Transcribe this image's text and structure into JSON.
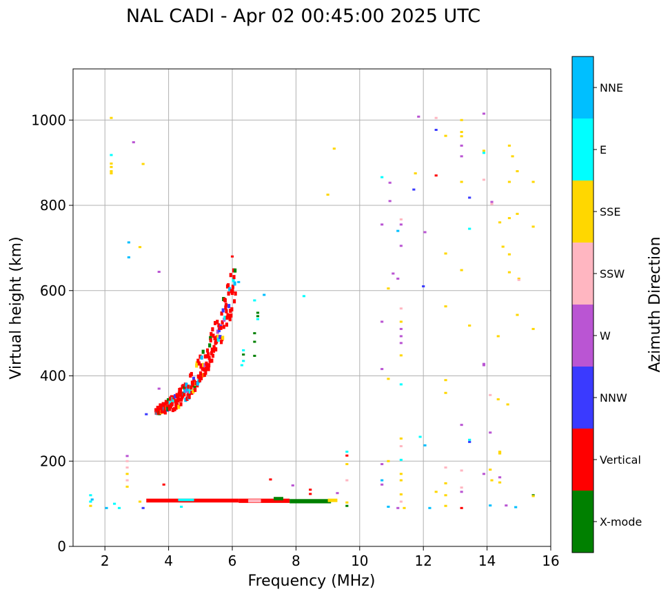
{
  "chart_data": {
    "type": "scatter",
    "title": "NAL CADI - Apr 02 00:45:00 2025 UTC",
    "xlabel": "Frequency (MHz)",
    "ylabel": "Virtual height (km)",
    "xlim": [
      1.0,
      16.0
    ],
    "ylim": [
      0,
      1120
    ],
    "xticks": [
      2,
      4,
      6,
      8,
      10,
      12,
      14,
      16
    ],
    "yticks": [
      0,
      200,
      400,
      600,
      800,
      1000
    ],
    "grid": true,
    "colorbar": {
      "label": "Azimuth Direction",
      "categories": [
        {
          "name": "X-mode",
          "color": "#008000"
        },
        {
          "name": "Vertical",
          "color": "#ff0000"
        },
        {
          "name": "NNW",
          "color": "#3a3aff"
        },
        {
          "name": "W",
          "color": "#ba55d3"
        },
        {
          "name": "SSW",
          "color": "#ffb6c1"
        },
        {
          "name": "SSE",
          "color": "#ffd700"
        },
        {
          "name": "E",
          "color": "#00ffff"
        },
        {
          "name": "NNE",
          "color": "#00bfff"
        }
      ]
    },
    "points": [
      {
        "f": 1.55,
        "h": 120,
        "c": "E"
      },
      {
        "f": 1.55,
        "h": 105,
        "c": "E"
      },
      {
        "f": 1.55,
        "h": 95,
        "c": "SSE"
      },
      {
        "f": 1.6,
        "h": 110,
        "c": "NNE"
      },
      {
        "f": 2.05,
        "h": 90,
        "c": "NNE"
      },
      {
        "f": 2.3,
        "h": 100,
        "c": "E"
      },
      {
        "f": 2.45,
        "h": 90,
        "c": "E"
      },
      {
        "f": 2.2,
        "h": 1005,
        "c": "SSE"
      },
      {
        "f": 2.2,
        "h": 918,
        "c": "E"
      },
      {
        "f": 2.2,
        "h": 898,
        "c": "SSE"
      },
      {
        "f": 2.2,
        "h": 890,
        "c": "SSE"
      },
      {
        "f": 2.2,
        "h": 880,
        "c": "SSE"
      },
      {
        "f": 2.2,
        "h": 875,
        "c": "SSE"
      },
      {
        "f": 2.9,
        "h": 948,
        "c": "W"
      },
      {
        "f": 3.2,
        "h": 897,
        "c": "SSE"
      },
      {
        "f": 2.75,
        "h": 713,
        "c": "NNE"
      },
      {
        "f": 3.1,
        "h": 702,
        "c": "SSE"
      },
      {
        "f": 2.75,
        "h": 678,
        "c": "NNE"
      },
      {
        "f": 2.7,
        "h": 212,
        "c": "W"
      },
      {
        "f": 2.7,
        "h": 200,
        "c": "SSW"
      },
      {
        "f": 2.7,
        "h": 185,
        "c": "SSW"
      },
      {
        "f": 2.7,
        "h": 170,
        "c": "SSE"
      },
      {
        "f": 2.7,
        "h": 155,
        "c": "SSW"
      },
      {
        "f": 2.7,
        "h": 140,
        "c": "SSE"
      },
      {
        "f": 3.7,
        "h": 644,
        "c": "W"
      },
      {
        "f": 3.7,
        "h": 370,
        "c": "W"
      },
      {
        "f": 3.3,
        "h": 310,
        "c": "NNW"
      },
      {
        "f": 3.85,
        "h": 145,
        "c": "Vertical"
      },
      {
        "f": 3.2,
        "h": 90,
        "c": "NNW"
      },
      {
        "f": 3.1,
        "h": 105,
        "c": "SSE"
      },
      {
        "f": 4.4,
        "h": 93,
        "c": "E"
      },
      {
        "f": 7.2,
        "h": 157,
        "c": "Vertical"
      },
      {
        "f": 7.9,
        "h": 143,
        "c": "W"
      },
      {
        "f": 8.45,
        "h": 133,
        "c": "Vertical"
      },
      {
        "f": 8.45,
        "h": 123,
        "c": "Vertical"
      },
      {
        "f": 6.8,
        "h": 548,
        "c": "X-mode"
      },
      {
        "f": 6.8,
        "h": 540,
        "c": "X-mode"
      },
      {
        "f": 6.8,
        "h": 533,
        "c": "E"
      },
      {
        "f": 6.7,
        "h": 500,
        "c": "X-mode"
      },
      {
        "f": 6.7,
        "h": 480,
        "c": "X-mode"
      },
      {
        "f": 6.7,
        "h": 447,
        "c": "X-mode"
      },
      {
        "f": 6.35,
        "h": 460,
        "c": "E"
      },
      {
        "f": 6.35,
        "h": 450,
        "c": "X-mode"
      },
      {
        "f": 6.35,
        "h": 435,
        "c": "E"
      },
      {
        "f": 6.3,
        "h": 425,
        "c": "E"
      },
      {
        "f": 6.2,
        "h": 620,
        "c": "NNE"
      },
      {
        "f": 6.0,
        "h": 680,
        "c": "Vertical"
      },
      {
        "f": 6.7,
        "h": 577,
        "c": "E"
      },
      {
        "f": 7.0,
        "h": 590,
        "c": "NNE"
      },
      {
        "f": 9.2,
        "h": 933,
        "c": "SSE"
      },
      {
        "f": 9.0,
        "h": 825,
        "c": "SSE"
      },
      {
        "f": 8.25,
        "h": 587,
        "c": "E"
      },
      {
        "f": 9.6,
        "h": 222,
        "c": "E"
      },
      {
        "f": 9.6,
        "h": 213,
        "c": "Vertical"
      },
      {
        "f": 9.6,
        "h": 193,
        "c": "SSE"
      },
      {
        "f": 9.6,
        "h": 155,
        "c": "SSW"
      },
      {
        "f": 9.3,
        "h": 125,
        "c": "W"
      },
      {
        "f": 9.6,
        "h": 103,
        "c": "SSE"
      },
      {
        "f": 9.6,
        "h": 95,
        "c": "X-mode"
      },
      {
        "f": 10.7,
        "h": 866,
        "c": "E"
      },
      {
        "f": 10.95,
        "h": 853,
        "c": "W"
      },
      {
        "f": 10.95,
        "h": 810,
        "c": "W"
      },
      {
        "f": 10.7,
        "h": 755,
        "c": "W"
      },
      {
        "f": 11.2,
        "h": 740,
        "c": "NNE"
      },
      {
        "f": 11.3,
        "h": 767,
        "c": "SSW"
      },
      {
        "f": 11.3,
        "h": 755,
        "c": "W"
      },
      {
        "f": 11.3,
        "h": 705,
        "c": "W"
      },
      {
        "f": 11.05,
        "h": 640,
        "c": "W"
      },
      {
        "f": 11.2,
        "h": 628,
        "c": "W"
      },
      {
        "f": 10.9,
        "h": 605,
        "c": "SSE"
      },
      {
        "f": 10.7,
        "h": 527,
        "c": "W"
      },
      {
        "f": 11.3,
        "h": 558,
        "c": "SSW"
      },
      {
        "f": 11.3,
        "h": 527,
        "c": "SSE"
      },
      {
        "f": 11.3,
        "h": 510,
        "c": "W"
      },
      {
        "f": 11.3,
        "h": 493,
        "c": "W"
      },
      {
        "f": 11.3,
        "h": 477,
        "c": "W"
      },
      {
        "f": 11.3,
        "h": 448,
        "c": "SSE"
      },
      {
        "f": 10.7,
        "h": 416,
        "c": "W"
      },
      {
        "f": 10.9,
        "h": 393,
        "c": "SSE"
      },
      {
        "f": 11.3,
        "h": 380,
        "c": "E"
      },
      {
        "f": 11.3,
        "h": 253,
        "c": "SSE"
      },
      {
        "f": 11.3,
        "h": 235,
        "c": "SSW"
      },
      {
        "f": 11.3,
        "h": 203,
        "c": "E"
      },
      {
        "f": 10.9,
        "h": 200,
        "c": "SSE"
      },
      {
        "f": 10.7,
        "h": 193,
        "c": "W"
      },
      {
        "f": 11.3,
        "h": 170,
        "c": "SSE"
      },
      {
        "f": 11.3,
        "h": 155,
        "c": "SSE"
      },
      {
        "f": 10.7,
        "h": 155,
        "c": "NNE"
      },
      {
        "f": 10.7,
        "h": 145,
        "c": "W"
      },
      {
        "f": 11.3,
        "h": 122,
        "c": "SSE"
      },
      {
        "f": 11.3,
        "h": 105,
        "c": "SSW"
      },
      {
        "f": 10.9,
        "h": 93,
        "c": "NNE"
      },
      {
        "f": 11.2,
        "h": 90,
        "c": "W"
      },
      {
        "f": 11.4,
        "h": 90,
        "c": "SSE"
      },
      {
        "f": 11.75,
        "h": 875,
        "c": "SSE"
      },
      {
        "f": 11.7,
        "h": 837,
        "c": "NNW"
      },
      {
        "f": 11.85,
        "h": 1008,
        "c": "W"
      },
      {
        "f": 12.05,
        "h": 737,
        "c": "W"
      },
      {
        "f": 12.0,
        "h": 610,
        "c": "NNW"
      },
      {
        "f": 11.9,
        "h": 257,
        "c": "E"
      },
      {
        "f": 12.05,
        "h": 237,
        "c": "NNE"
      },
      {
        "f": 12.2,
        "h": 90,
        "c": "NNE"
      },
      {
        "f": 12.4,
        "h": 1005,
        "c": "SSW"
      },
      {
        "f": 12.4,
        "h": 977,
        "c": "NNW"
      },
      {
        "f": 12.7,
        "h": 963,
        "c": "SSE"
      },
      {
        "f": 12.4,
        "h": 870,
        "c": "Vertical"
      },
      {
        "f": 13.2,
        "h": 1000,
        "c": "SSE"
      },
      {
        "f": 13.2,
        "h": 972,
        "c": "SSE"
      },
      {
        "f": 13.2,
        "h": 962,
        "c": "SSE"
      },
      {
        "f": 13.2,
        "h": 940,
        "c": "W"
      },
      {
        "f": 13.2,
        "h": 915,
        "c": "W"
      },
      {
        "f": 13.2,
        "h": 855,
        "c": "SSE"
      },
      {
        "f": 13.45,
        "h": 818,
        "c": "NNW"
      },
      {
        "f": 13.45,
        "h": 745,
        "c": "E"
      },
      {
        "f": 12.7,
        "h": 687,
        "c": "SSE"
      },
      {
        "f": 13.2,
        "h": 648,
        "c": "SSE"
      },
      {
        "f": 12.7,
        "h": 563,
        "c": "SSE"
      },
      {
        "f": 13.45,
        "h": 518,
        "c": "SSE"
      },
      {
        "f": 12.7,
        "h": 390,
        "c": "SSE"
      },
      {
        "f": 12.7,
        "h": 360,
        "c": "SSE"
      },
      {
        "f": 13.2,
        "h": 285,
        "c": "W"
      },
      {
        "f": 13.45,
        "h": 250,
        "c": "E"
      },
      {
        "f": 13.45,
        "h": 245,
        "c": "NNW"
      },
      {
        "f": 12.7,
        "h": 185,
        "c": "SSW"
      },
      {
        "f": 13.2,
        "h": 178,
        "c": "SSW"
      },
      {
        "f": 12.7,
        "h": 148,
        "c": "SSE"
      },
      {
        "f": 12.4,
        "h": 128,
        "c": "SSE"
      },
      {
        "f": 12.7,
        "h": 120,
        "c": "SSE"
      },
      {
        "f": 13.2,
        "h": 138,
        "c": "SSW"
      },
      {
        "f": 13.2,
        "h": 128,
        "c": "W"
      },
      {
        "f": 12.7,
        "h": 95,
        "c": "SSE"
      },
      {
        "f": 13.2,
        "h": 90,
        "c": "Vertical"
      },
      {
        "f": 13.9,
        "h": 1015,
        "c": "W"
      },
      {
        "f": 13.9,
        "h": 928,
        "c": "SSE"
      },
      {
        "f": 13.9,
        "h": 923,
        "c": "E"
      },
      {
        "f": 13.9,
        "h": 860,
        "c": "SSW"
      },
      {
        "f": 14.15,
        "h": 808,
        "c": "W"
      },
      {
        "f": 14.15,
        "h": 803,
        "c": "SSW"
      },
      {
        "f": 13.9,
        "h": 428,
        "c": "W"
      },
      {
        "f": 13.9,
        "h": 425,
        "c": "W"
      },
      {
        "f": 14.4,
        "h": 760,
        "c": "SSE"
      },
      {
        "f": 14.5,
        "h": 703,
        "c": "SSE"
      },
      {
        "f": 14.7,
        "h": 685,
        "c": "SSE"
      },
      {
        "f": 14.7,
        "h": 643,
        "c": "SSE"
      },
      {
        "f": 14.7,
        "h": 940,
        "c": "SSE"
      },
      {
        "f": 14.8,
        "h": 915,
        "c": "SSE"
      },
      {
        "f": 14.95,
        "h": 880,
        "c": "SSE"
      },
      {
        "f": 14.7,
        "h": 855,
        "c": "SSE"
      },
      {
        "f": 14.95,
        "h": 780,
        "c": "SSE"
      },
      {
        "f": 14.7,
        "h": 770,
        "c": "SSE"
      },
      {
        "f": 15.0,
        "h": 628,
        "c": "SSE"
      },
      {
        "f": 15.0,
        "h": 625,
        "c": "SSW"
      },
      {
        "f": 14.95,
        "h": 543,
        "c": "SSE"
      },
      {
        "f": 14.35,
        "h": 493,
        "c": "SSE"
      },
      {
        "f": 14.1,
        "h": 355,
        "c": "SSW"
      },
      {
        "f": 14.35,
        "h": 345,
        "c": "SSE"
      },
      {
        "f": 14.65,
        "h": 333,
        "c": "SSE"
      },
      {
        "f": 14.1,
        "h": 267,
        "c": "W"
      },
      {
        "f": 14.4,
        "h": 222,
        "c": "SSE"
      },
      {
        "f": 14.4,
        "h": 218,
        "c": "SSE"
      },
      {
        "f": 14.1,
        "h": 180,
        "c": "SSE"
      },
      {
        "f": 13.9,
        "h": 170,
        "c": "W"
      },
      {
        "f": 14.4,
        "h": 162,
        "c": "W"
      },
      {
        "f": 14.15,
        "h": 155,
        "c": "SSE"
      },
      {
        "f": 14.4,
        "h": 150,
        "c": "SSE"
      },
      {
        "f": 14.1,
        "h": 96,
        "c": "NNE"
      },
      {
        "f": 14.6,
        "h": 96,
        "c": "W"
      },
      {
        "f": 14.9,
        "h": 92,
        "c": "NNE"
      },
      {
        "f": 15.45,
        "h": 855,
        "c": "SSE"
      },
      {
        "f": 15.45,
        "h": 750,
        "c": "SSE"
      },
      {
        "f": 15.45,
        "h": 510,
        "c": "SSE"
      },
      {
        "f": 15.45,
        "h": 120,
        "c": "X-mode"
      },
      {
        "f": 15.45,
        "h": 118,
        "c": "SSE"
      }
    ],
    "bands": [
      {
        "f0": 3.3,
        "f1": 6.2,
        "h0": 103,
        "h1": 112,
        "c": "Vertical"
      },
      {
        "f0": 6.2,
        "f1": 7.8,
        "h0": 102,
        "h1": 112,
        "c": "Vertical"
      },
      {
        "f0": 7.8,
        "f1": 9.1,
        "h0": 101,
        "h1": 111,
        "c": "X-mode"
      },
      {
        "f0": 9.0,
        "f1": 9.3,
        "h0": 104,
        "h1": 112,
        "c": "SSE"
      },
      {
        "f0": 4.3,
        "f1": 4.8,
        "h0": 106,
        "h1": 112,
        "c": "E"
      },
      {
        "f0": 6.5,
        "f1": 6.9,
        "h0": 103,
        "h1": 111,
        "c": "SSW"
      },
      {
        "f0": 7.3,
        "f1": 7.6,
        "h0": 108,
        "h1": 116,
        "c": "X-mode"
      }
    ],
    "trace": {
      "f_start": 3.6,
      "f_end": 6.1,
      "h_start": 315,
      "h_end": 590,
      "c": "Vertical",
      "mix": [
        "NNW",
        "E",
        "SSE",
        "NNE",
        "W",
        "X-mode"
      ]
    }
  }
}
